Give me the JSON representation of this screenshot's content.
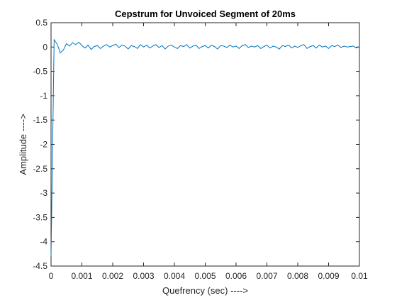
{
  "chart_data": {
    "type": "line",
    "title": "Cepstrum for Unvoiced Segment of 20ms",
    "xlabel": "Quefrency (sec) ---->",
    "ylabel": "Amplitude ---->",
    "x": [
      0,
      0.0001,
      0.0002,
      0.0003,
      0.0004,
      0.0005,
      0.0006,
      0.0007,
      0.0008,
      0.0009,
      0.001,
      0.0011,
      0.0012,
      0.0013,
      0.0014,
      0.0015,
      0.0016,
      0.0017,
      0.0018,
      0.0019,
      0.002,
      0.0021,
      0.0022,
      0.0023,
      0.0024,
      0.0025,
      0.0026,
      0.0027,
      0.0028,
      0.0029,
      0.003,
      0.0031,
      0.0032,
      0.0033,
      0.0034,
      0.0035,
      0.0036,
      0.0037,
      0.0038,
      0.0039,
      0.004,
      0.0041,
      0.0042,
      0.0043,
      0.0044,
      0.0045,
      0.0046,
      0.0047,
      0.0048,
      0.0049,
      0.005,
      0.0051,
      0.0052,
      0.0053,
      0.0054,
      0.0055,
      0.0056,
      0.0057,
      0.0058,
      0.0059,
      0.006,
      0.0061,
      0.0062,
      0.0063,
      0.0064,
      0.0065,
      0.0066,
      0.0067,
      0.0068,
      0.0069,
      0.007,
      0.0071,
      0.0072,
      0.0073,
      0.0074,
      0.0075,
      0.0076,
      0.0077,
      0.0078,
      0.0079,
      0.008,
      0.0081,
      0.0082,
      0.0083,
      0.0084,
      0.0085,
      0.0086,
      0.0087,
      0.0088,
      0.0089,
      0.009,
      0.0091,
      0.0092,
      0.0093,
      0.0094,
      0.0095,
      0.0096,
      0.0097,
      0.0098,
      0.0099,
      0.01
    ],
    "series": [
      {
        "color": "#0072bd",
        "values": [
          -4.3,
          0.15,
          0.06,
          -0.12,
          -0.06,
          0.07,
          0.02,
          0.09,
          0.05,
          0.1,
          0.03,
          -0.02,
          0.04,
          -0.05,
          0.01,
          0.03,
          -0.03,
          0.02,
          0.05,
          0.0,
          0.03,
          0.06,
          -0.01,
          0.04,
          0.02,
          -0.04,
          0.03,
          0.01,
          -0.03,
          0.05,
          0.0,
          0.04,
          -0.02,
          0.02,
          0.05,
          -0.01,
          0.03,
          -0.04,
          0.02,
          0.04,
          0.0,
          -0.03,
          0.03,
          0.01,
          0.05,
          -0.02,
          0.02,
          0.04,
          -0.03,
          0.01,
          0.03,
          -0.02,
          0.04,
          0.01,
          -0.04,
          0.03,
          0.02,
          -0.01,
          0.04,
          0.0,
          0.02,
          -0.03,
          0.03,
          0.05,
          -0.01,
          0.02,
          0.0,
          0.03,
          -0.03,
          0.01,
          0.04,
          -0.02,
          0.02,
          0.0,
          -0.04,
          0.03,
          0.01,
          0.04,
          -0.02,
          0.02,
          -0.01,
          0.03,
          0.05,
          -0.03,
          0.01,
          0.03,
          -0.02,
          0.04,
          0.0,
          0.02,
          -0.03,
          0.03,
          0.01,
          0.04,
          -0.01,
          0.02,
          0.0,
          0.01,
          0.02,
          -0.02,
          0.01
        ]
      }
    ],
    "xlim": [
      0,
      0.01
    ],
    "ylim": [
      -4.5,
      0.5
    ],
    "xticks": [
      0,
      0.001,
      0.002,
      0.003,
      0.004,
      0.005,
      0.006,
      0.007,
      0.008,
      0.009,
      0.01
    ],
    "yticks": [
      -4.5,
      -4,
      -3.5,
      -3,
      -2.5,
      -2,
      -1.5,
      -1,
      -0.5,
      0,
      0.5
    ],
    "grid": false
  }
}
